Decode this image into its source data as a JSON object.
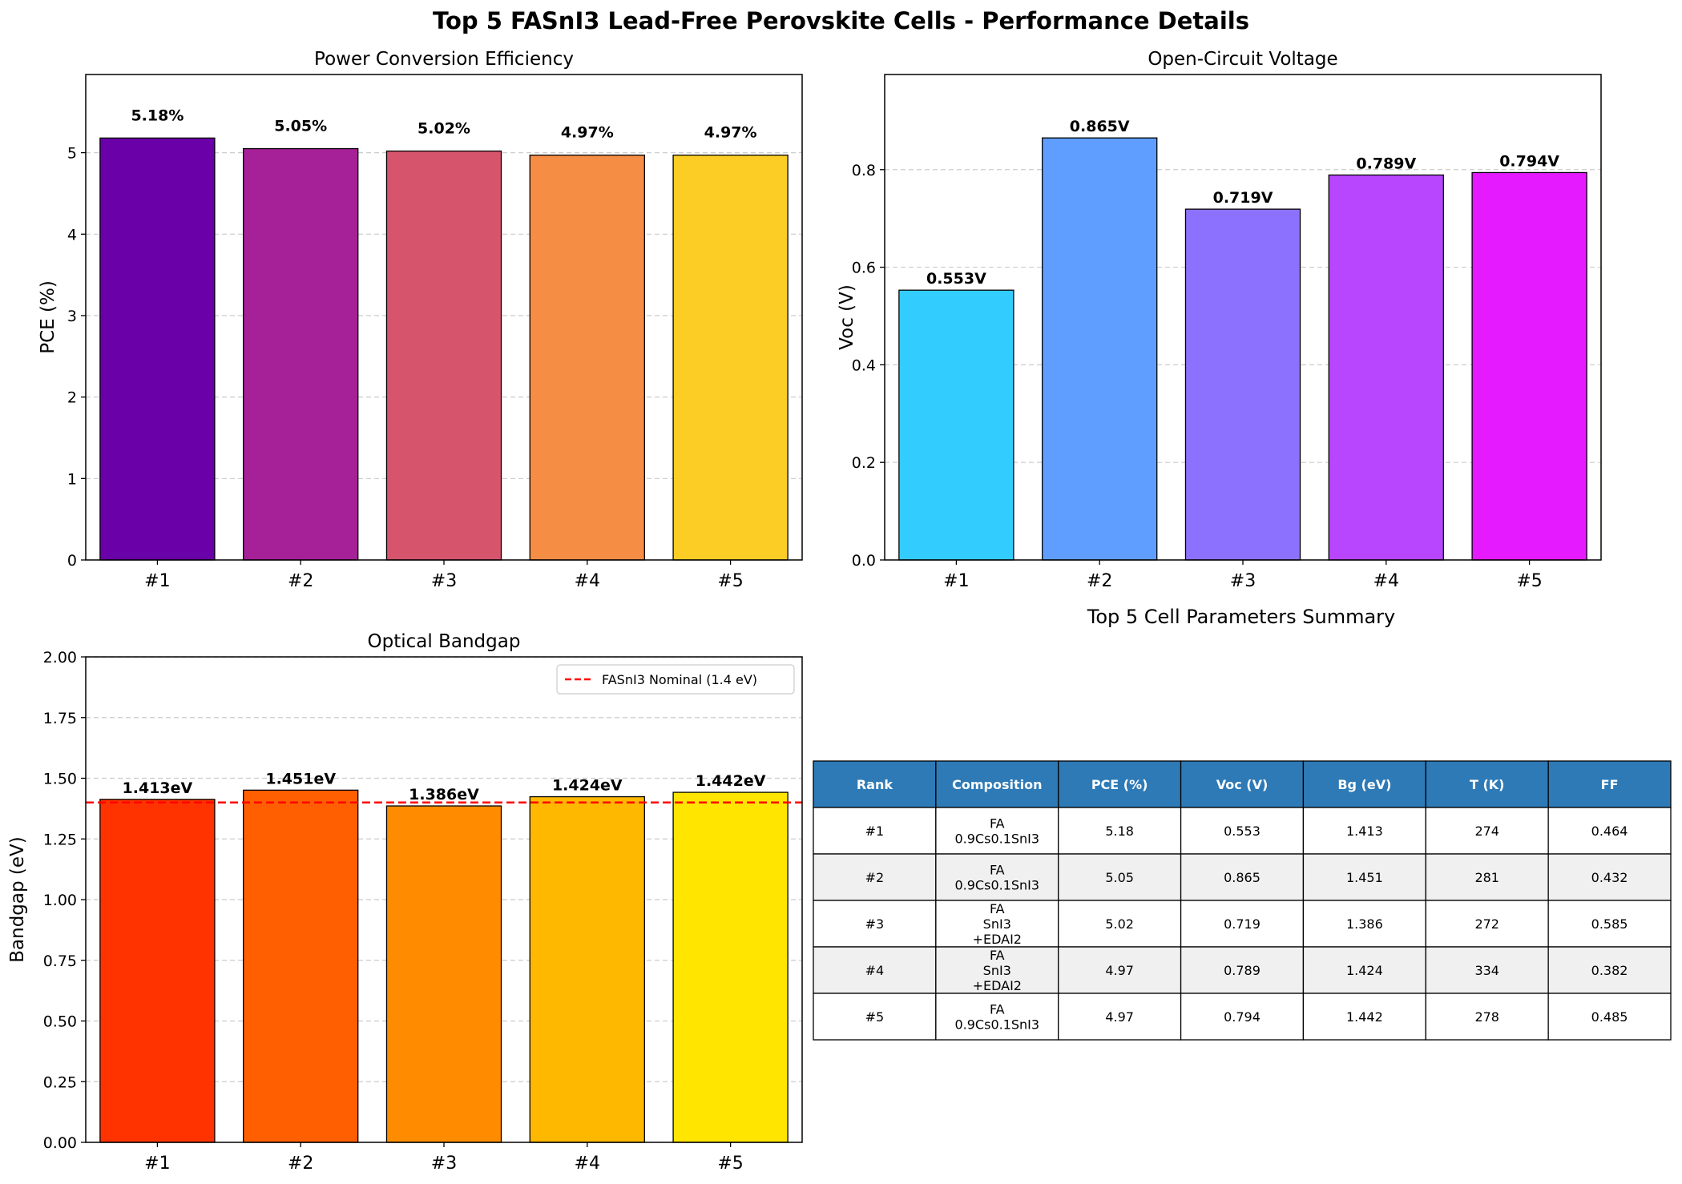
{
  "figure": {
    "suptitle": "Top 5 FASnI3 Lead-Free Perovskite Cells - Performance Details"
  },
  "chart_data": [
    {
      "type": "bar",
      "title": "Power Conversion Efficiency",
      "categories": [
        "#1",
        "#2",
        "#3",
        "#4",
        "#5"
      ],
      "values": [
        5.18,
        5.05,
        5.02,
        4.97,
        4.97
      ],
      "labels": [
        "5.18%",
        "5.05%",
        "5.02%",
        "4.97%",
        "4.97%"
      ],
      "colors": [
        "#6a00a8",
        "#a62098",
        "#d6556d",
        "#f68d45",
        "#fccd25"
      ],
      "xlabel": "",
      "ylabel": "PCE (%)",
      "ylim": [
        0,
        5.96
      ],
      "yticks": [
        0,
        1,
        2,
        3,
        4,
        5
      ],
      "ytick_labels": [
        "0",
        "1",
        "2",
        "3",
        "4",
        "5"
      ],
      "grid": "y-dashed"
    },
    {
      "type": "bar",
      "title": "Open-Circuit Voltage",
      "categories": [
        "#1",
        "#2",
        "#3",
        "#4",
        "#5"
      ],
      "values": [
        0.553,
        0.865,
        0.719,
        0.789,
        0.794
      ],
      "labels": [
        "0.553V",
        "0.865V",
        "0.719V",
        "0.789V",
        "0.794V"
      ],
      "colors": [
        "#33ccff",
        "#5f9eff",
        "#8c71ff",
        "#b846ff",
        "#e61aff"
      ],
      "xlabel": "",
      "ylabel": "Voc (V)",
      "ylim": [
        0,
        0.995
      ],
      "yticks": [
        0,
        0.2,
        0.4,
        0.6,
        0.8
      ],
      "ytick_labels": [
        "0.0",
        "0.2",
        "0.4",
        "0.6",
        "0.8"
      ],
      "grid": "y-dashed"
    },
    {
      "type": "bar",
      "title": "Optical Bandgap",
      "categories": [
        "#1",
        "#2",
        "#3",
        "#4",
        "#5"
      ],
      "values": [
        1.413,
        1.451,
        1.386,
        1.424,
        1.442
      ],
      "labels": [
        "1.413eV",
        "1.451eV",
        "1.386eV",
        "1.424eV",
        "1.442eV"
      ],
      "colors": [
        "#ff3300",
        "#ff5f00",
        "#ff8c00",
        "#ffb800",
        "#ffe500"
      ],
      "xlabel": "",
      "ylabel": "Bandgap (eV)",
      "ylim": [
        0,
        2.0
      ],
      "yticks": [
        0,
        0.25,
        0.5,
        0.75,
        1.0,
        1.25,
        1.5,
        1.75,
        2.0
      ],
      "ytick_labels": [
        "0.00",
        "0.25",
        "0.50",
        "0.75",
        "1.00",
        "1.25",
        "1.50",
        "1.75",
        "2.00"
      ],
      "grid": "y-dashed",
      "reference_line": {
        "value": 1.4,
        "color": "#ff0000",
        "label": "FASnI3 Nominal (1.4 eV)"
      },
      "legend": "top-right"
    },
    {
      "type": "table",
      "title": "Top 5 Cell Parameters Summary",
      "header_color": "#2e7ab6",
      "columns": [
        "Rank",
        "Composition",
        "PCE (%)",
        "Voc (V)",
        "Bg (eV)",
        "T (K)",
        "FF"
      ],
      "rows": [
        [
          "#1",
          [
            "FA",
            "0.9Cs0.1SnI3"
          ],
          "5.18",
          "0.553",
          "1.413",
          "274",
          "0.464"
        ],
        [
          "#2",
          [
            "FA",
            "0.9Cs0.1SnI3"
          ],
          "5.05",
          "0.865",
          "1.451",
          "281",
          "0.432"
        ],
        [
          "#3",
          [
            "FA",
            "SnI3",
            "+EDAI2"
          ],
          "5.02",
          "0.719",
          "1.386",
          "272",
          "0.585"
        ],
        [
          "#4",
          [
            "FA",
            "SnI3",
            "+EDAI2"
          ],
          "4.97",
          "0.789",
          "1.424",
          "334",
          "0.382"
        ],
        [
          "#5",
          [
            "FA",
            "0.9Cs0.1SnI3"
          ],
          "4.97",
          "0.794",
          "1.442",
          "278",
          "0.485"
        ]
      ]
    }
  ]
}
